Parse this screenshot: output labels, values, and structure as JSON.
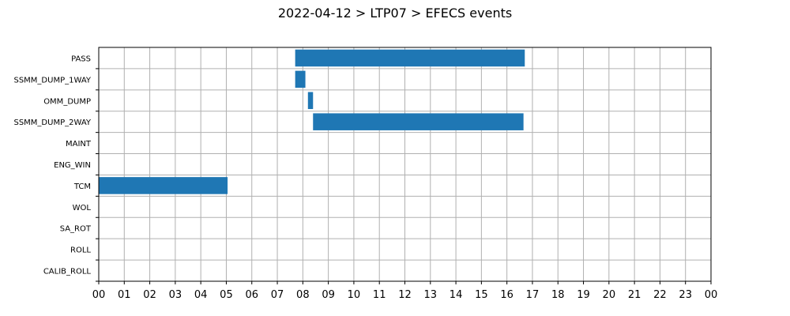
{
  "chart_data": {
    "type": "bar",
    "orientation": "horizontal",
    "title": "2022-04-12 > LTP07 > EFECS events",
    "xlabel": "",
    "ylabel": "",
    "categories": [
      "PASS",
      "SSMM_DUMP_1WAY",
      "OMM_DUMP",
      "SSMM_DUMP_2WAY",
      "MAINT",
      "ENG_WIN",
      "TCM",
      "WOL",
      "SA_ROT",
      "ROLL",
      "CALIB_ROLL"
    ],
    "x_tick_labels": [
      "00",
      "01",
      "02",
      "03",
      "04",
      "05",
      "06",
      "07",
      "08",
      "09",
      "10",
      "11",
      "12",
      "13",
      "14",
      "15",
      "16",
      "17",
      "18",
      "19",
      "20",
      "21",
      "22",
      "23",
      "00"
    ],
    "xlim": [
      0,
      24
    ],
    "grid": true,
    "bar_color": "#1f77b4",
    "events": [
      {
        "category": "PASS",
        "start": 7.7,
        "end": 16.7
      },
      {
        "category": "SSMM_DUMP_1WAY",
        "start": 7.7,
        "end": 8.1
      },
      {
        "category": "OMM_DUMP",
        "start": 8.2,
        "end": 8.4
      },
      {
        "category": "SSMM_DUMP_2WAY",
        "start": 8.4,
        "end": 16.65
      },
      {
        "category": "TCM",
        "start": 0.0,
        "end": 5.05
      }
    ]
  }
}
